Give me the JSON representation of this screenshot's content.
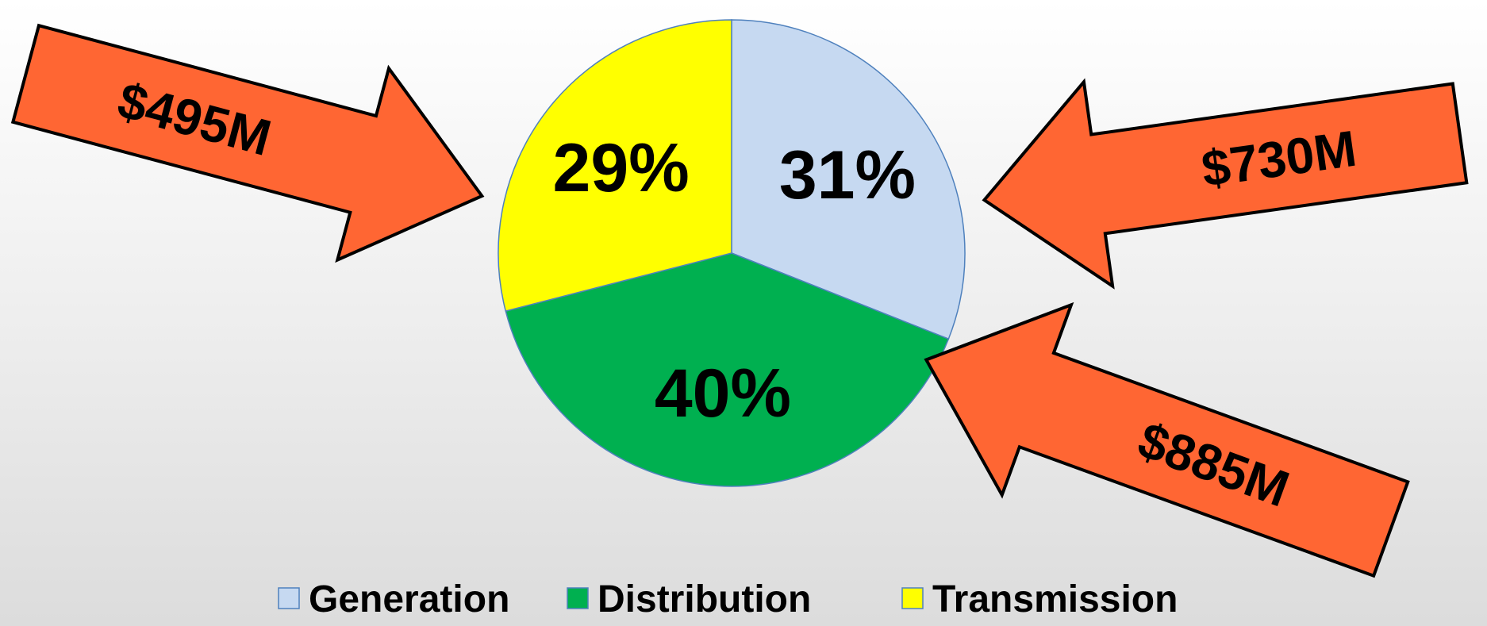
{
  "chart_data": {
    "type": "pie",
    "slices": [
      {
        "name": "Generation",
        "value": 31,
        "label": "31%",
        "color": "#c6d9f1"
      },
      {
        "name": "Distribution",
        "value": 40,
        "label": "40%",
        "color": "#00b050"
      },
      {
        "name": "Transmission",
        "value": 29,
        "label": "29%",
        "color": "#ffff00"
      }
    ],
    "start_angle_deg": 0,
    "direction": "clockwise",
    "slice_border_color": "#4f81bd",
    "legend": {
      "position": "bottom",
      "entries": [
        "Generation",
        "Distribution",
        "Transmission"
      ]
    },
    "annotations": [
      {
        "slice": "Transmission",
        "text": "$495M",
        "arrow_color": "#ff6633"
      },
      {
        "slice": "Generation",
        "text": "$730M",
        "arrow_color": "#ff6633"
      },
      {
        "slice": "Distribution",
        "text": "$885M",
        "arrow_color": "#ff6633"
      }
    ]
  }
}
